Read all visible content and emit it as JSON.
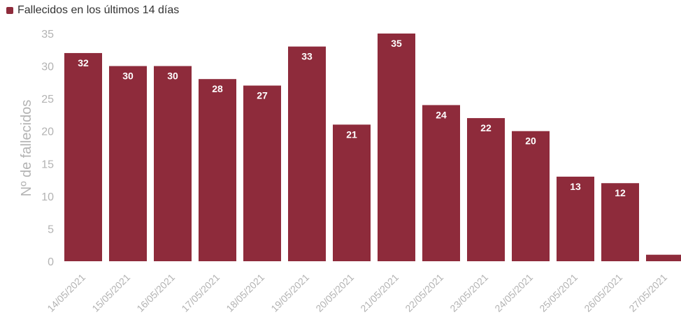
{
  "chart_data": {
    "type": "bar",
    "legend": {
      "label": "Fallecidos en los últimos 14 días",
      "position": "top-left"
    },
    "ylabel": "Nº de fallecidos",
    "xlabel": "",
    "categories": [
      "14/05/2021",
      "15/05/2021",
      "16/05/2021",
      "17/05/2021",
      "18/05/2021",
      "19/05/2021",
      "20/05/2021",
      "21/05/2021",
      "22/05/2021",
      "23/05/2021",
      "24/05/2021",
      "25/05/2021",
      "26/05/2021",
      "27/05/2021"
    ],
    "series": [
      {
        "name": "Fallecidos en los últimos 14 días",
        "values": [
          32,
          30,
          30,
          28,
          27,
          33,
          21,
          35,
          24,
          22,
          20,
          13,
          12,
          1
        ]
      }
    ],
    "data_labels": [
      "32",
      "30",
      "30",
      "28",
      "27",
      "33",
      "21",
      "35",
      "24",
      "22",
      "20",
      "13",
      "12",
      ""
    ],
    "ylim": [
      0,
      35
    ],
    "yticks": [
      0,
      5,
      10,
      15,
      20,
      25,
      30,
      35
    ],
    "grid": false,
    "color": "#8e2b3b"
  }
}
